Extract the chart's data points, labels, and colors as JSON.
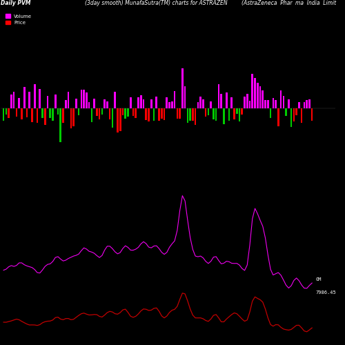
{
  "title_left": "Daily PVM",
  "title_center": "(3day smooth) MunafaSutra(TM) charts for ASTRAZEN",
  "title_right_1": "(AstraZeneca  Phar",
  "title_right_2": "ma  India  Limit",
  "legend_volume": "Volume",
  "legend_price": "Price",
  "label_0M": "0M",
  "label_price_val": "7986.45",
  "background_color": "#000000",
  "bar_color_pos_volume": "#ff00ff",
  "bar_color_neg_volume": "#00cc00",
  "bar_color_red": "#ff0000",
  "price_line_color": "#ff00ff",
  "obv_line_color": "#cc0000",
  "n_points": 120
}
